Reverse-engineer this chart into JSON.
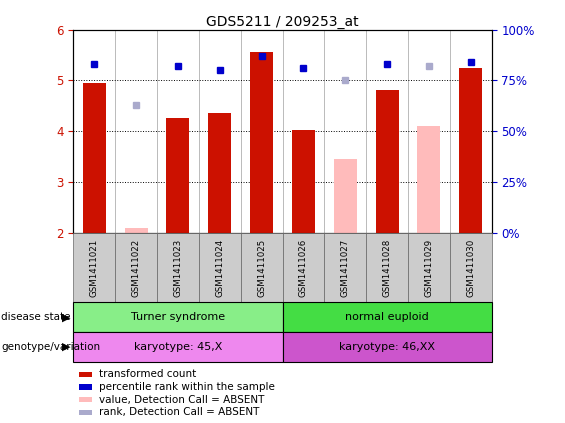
{
  "title": "GDS5211 / 209253_at",
  "samples": [
    "GSM1411021",
    "GSM1411022",
    "GSM1411023",
    "GSM1411024",
    "GSM1411025",
    "GSM1411026",
    "GSM1411027",
    "GSM1411028",
    "GSM1411029",
    "GSM1411030"
  ],
  "bar_values": [
    4.95,
    2.1,
    4.25,
    4.35,
    5.55,
    4.02,
    3.45,
    4.82,
    4.1,
    5.25
  ],
  "bar_absent": [
    false,
    true,
    false,
    false,
    false,
    false,
    true,
    false,
    true,
    false
  ],
  "rank_values": [
    83,
    63,
    82,
    80,
    87,
    81,
    75,
    83,
    82,
    84
  ],
  "rank_absent": [
    false,
    true,
    false,
    false,
    false,
    false,
    true,
    false,
    true,
    false
  ],
  "ylim_left": [
    2,
    6
  ],
  "ylim_right": [
    0,
    100
  ],
  "yticks_left": [
    2,
    3,
    4,
    5,
    6
  ],
  "yticks_right": [
    0,
    25,
    50,
    75,
    100
  ],
  "bar_color_present": "#cc1100",
  "bar_color_absent": "#ffbbbb",
  "rank_color_present": "#0000cc",
  "rank_color_absent": "#aaaacc",
  "disease_state_groups": [
    {
      "label": "Turner syndrome",
      "start": 0,
      "end": 4,
      "color": "#88ee88"
    },
    {
      "label": "normal euploid",
      "start": 5,
      "end": 9,
      "color": "#44dd44"
    }
  ],
  "genotype_groups": [
    {
      "label": "karyotype: 45,X",
      "start": 0,
      "end": 4,
      "color": "#ee88ee"
    },
    {
      "label": "karyotype: 46,XX",
      "start": 5,
      "end": 9,
      "color": "#cc55cc"
    }
  ],
  "legend_items": [
    {
      "label": "transformed count",
      "color": "#cc1100"
    },
    {
      "label": "percentile rank within the sample",
      "color": "#0000cc"
    },
    {
      "label": "value, Detection Call = ABSENT",
      "color": "#ffbbbb"
    },
    {
      "label": "rank, Detection Call = ABSENT",
      "color": "#aaaacc"
    }
  ],
  "ylabel_left_color": "#cc1100",
  "ylabel_right_color": "#0000cc",
  "background_color": "#ffffff",
  "bar_width": 0.55,
  "sample_box_color": "#cccccc"
}
